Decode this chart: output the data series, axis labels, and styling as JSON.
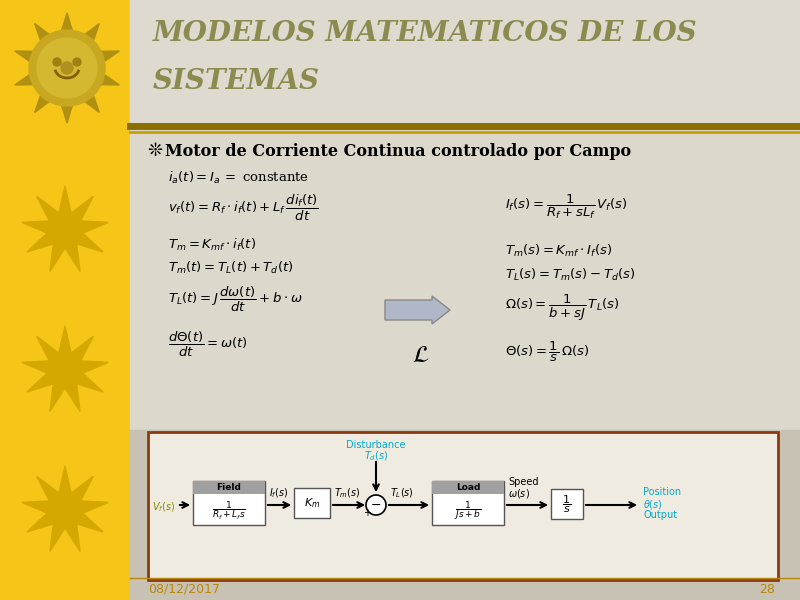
{
  "bg_left_color": "#F5C518",
  "bg_right_top_color": "#E8E0D0",
  "bg_right_bottom_color": "#C8C0B0",
  "title_line1": "MODELOS MATEMATICOS DE LOS",
  "title_line2": "SISTEMAS",
  "title_color": "#8B8B50",
  "sep_color1": "#8B7000",
  "sep_color2": "#C8A000",
  "bullet_text": "Motor de Corriente Continua controlado por Campo",
  "date_text": "08/12/2017",
  "page_num": "28",
  "footer_color": "#B8860B",
  "block_border_color": "#8B3A0F",
  "block_bg_color": "#F0EBE0",
  "disturbance_color": "#00AACC",
  "output_text_color": "#00AACC",
  "star_color": "#D4A800",
  "eq_color": "#000000",
  "arrow_fill": "#B0B8C8",
  "arrow_edge": "#888888"
}
